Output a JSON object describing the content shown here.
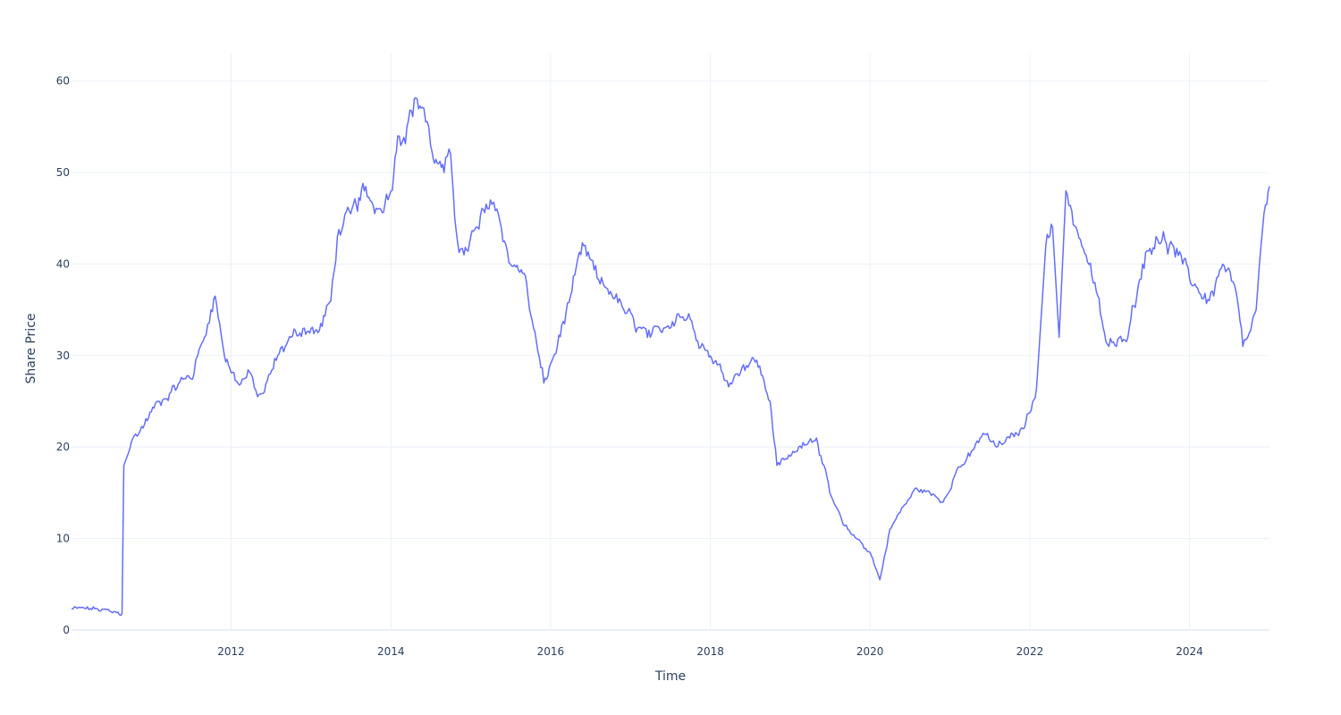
{
  "chart_data": {
    "type": "line",
    "title": "",
    "xlabel": "Time",
    "ylabel": "Share Price",
    "xlim": [
      "2010-01-01",
      "2025-01-01"
    ],
    "ylim": [
      0,
      63
    ],
    "x_ticks": [
      {
        "date": "2012-01-01",
        "label": "2012"
      },
      {
        "date": "2014-01-01",
        "label": "2014"
      },
      {
        "date": "2016-01-01",
        "label": "2016"
      },
      {
        "date": "2018-01-01",
        "label": "2018"
      },
      {
        "date": "2020-01-01",
        "label": "2020"
      },
      {
        "date": "2022-01-01",
        "label": "2022"
      },
      {
        "date": "2024-01-01",
        "label": "2024"
      }
    ],
    "y_ticks": [
      {
        "value": 0,
        "label": "0"
      },
      {
        "value": 10,
        "label": "10"
      },
      {
        "value": 20,
        "label": "20"
      },
      {
        "value": 30,
        "label": "30"
      },
      {
        "value": 40,
        "label": "40"
      },
      {
        "value": 50,
        "label": "50"
      },
      {
        "value": 60,
        "label": "60"
      }
    ],
    "grid": true,
    "line_color": "#636efa",
    "series": [
      {
        "x": [
          "2010-01-01",
          "2010-03-01",
          "2010-05-01",
          "2010-07-01",
          "2010-08-20",
          "2010-08-28",
          "2010-09-05",
          "2010-10-01",
          "2010-12-01",
          "2011-02-01",
          "2011-04-01",
          "2011-06-01",
          "2011-07-15",
          "2011-08-01",
          "2011-09-01",
          "2011-10-01",
          "2011-10-20",
          "2011-12-01",
          "2012-02-01",
          "2012-04-01",
          "2012-05-01",
          "2012-06-01",
          "2012-08-01",
          "2012-10-01",
          "2012-12-01",
          "2013-02-01",
          "2013-04-01",
          "2013-05-01",
          "2013-07-01",
          "2013-09-01",
          "2013-11-01",
          "2014-01-01",
          "2014-02-01",
          "2014-03-15",
          "2014-05-01",
          "2014-06-01",
          "2014-07-01",
          "2014-08-01",
          "2014-09-01",
          "2014-10-01",
          "2014-11-01",
          "2014-12-01",
          "2015-02-01",
          "2015-04-01",
          "2015-05-01",
          "2015-07-01",
          "2015-09-01",
          "2015-10-15",
          "2015-12-01",
          "2016-02-01",
          "2016-04-01",
          "2016-06-01",
          "2016-08-01",
          "2016-10-01",
          "2016-12-01",
          "2017-02-01",
          "2017-04-01",
          "2017-06-01",
          "2017-08-01",
          "2017-10-01",
          "2017-12-01",
          "2018-02-01",
          "2018-04-01",
          "2018-06-01",
          "2018-08-01",
          "2018-10-01",
          "2018-11-01",
          "2019-01-01",
          "2019-03-01",
          "2019-05-01",
          "2019-07-01",
          "2019-09-01",
          "2019-11-01",
          "2020-01-01",
          "2020-02-15",
          "2020-04-01",
          "2020-06-01",
          "2020-08-01",
          "2020-10-01",
          "2020-12-01",
          "2021-02-01",
          "2021-04-01",
          "2021-06-01",
          "2021-08-01",
          "2021-10-01",
          "2021-12-01",
          "2022-02-01",
          "2022-03-15",
          "2022-04-15",
          "2022-05-15",
          "2022-06-15",
          "2022-08-01",
          "2022-09-15",
          "2022-11-01",
          "2022-12-15",
          "2023-02-01",
          "2023-04-01",
          "2023-06-01",
          "2023-08-01",
          "2023-10-01",
          "2023-12-01",
          "2024-02-01",
          "2024-04-01",
          "2024-06-01",
          "2024-08-01",
          "2024-09-01",
          "2024-10-01",
          "2024-11-01",
          "2024-12-01",
          "2025-01-01"
        ],
        "y": [
          2.3,
          2.4,
          2.3,
          2.0,
          1.8,
          18.0,
          18.5,
          20.5,
          22.5,
          25.0,
          26.0,
          27.5,
          28.0,
          30.0,
          32.0,
          35.0,
          36.5,
          30.0,
          27.0,
          28.0,
          25.5,
          26.0,
          30.0,
          32.0,
          33.0,
          32.5,
          36.0,
          43.0,
          45.5,
          48.0,
          46.0,
          48.0,
          54.0,
          55.0,
          58.0,
          57.0,
          53.0,
          51.0,
          50.0,
          52.0,
          42.5,
          41.0,
          44.0,
          47.0,
          46.0,
          40.0,
          39.0,
          33.0,
          27.0,
          31.0,
          36.5,
          42.0,
          38.5,
          37.0,
          35.0,
          33.0,
          32.0,
          33.0,
          34.5,
          34.0,
          31.0,
          29.0,
          27.0,
          29.0,
          29.5,
          25.0,
          18.0,
          19.0,
          20.5,
          21.0,
          15.0,
          11.5,
          10.0,
          8.5,
          5.5,
          11.0,
          13.5,
          15.5,
          15.0,
          14.0,
          17.5,
          19.0,
          21.5,
          20.0,
          21.0,
          22.0,
          26.5,
          42.0,
          44.0,
          32.0,
          48.0,
          44.0,
          41.0,
          37.0,
          31.5,
          31.0,
          33.0,
          40.0,
          43.0,
          42.0,
          40.0,
          37.5,
          36.0,
          40.0,
          37.0,
          31.0,
          32.5,
          35.0,
          44.0,
          48.5
        ]
      }
    ]
  }
}
